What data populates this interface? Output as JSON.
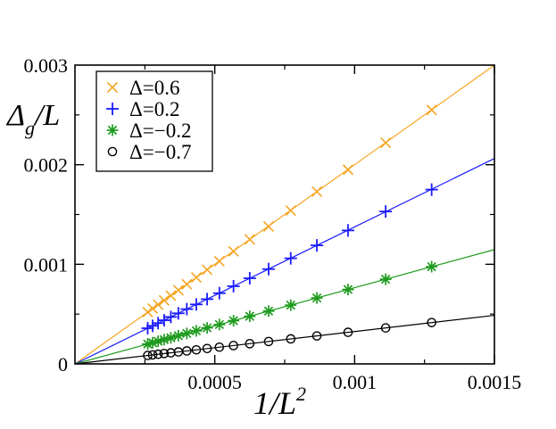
{
  "chart_data": {
    "type": "scatter",
    "title": "",
    "xlabel": "1/L",
    "xlabel_superscript": "2",
    "ylabel": "Δ",
    "ylabel_subscript": "g",
    "ylabel_suffix": "/L",
    "xlim": [
      0,
      0.0015
    ],
    "ylim": [
      0,
      0.003
    ],
    "x_ticks": [
      {
        "value": 0.0005,
        "label": "0.0005"
      },
      {
        "value": 0.001,
        "label": "0.001"
      },
      {
        "value": 0.0015,
        "label": "0.0015"
      }
    ],
    "y_ticks": [
      {
        "value": 0,
        "label": "0"
      },
      {
        "value": 0.001,
        "label": "0.001"
      },
      {
        "value": 0.002,
        "label": "0.002"
      },
      {
        "value": 0.003,
        "label": "0.003"
      }
    ],
    "grid": false,
    "legend_position": "top-left",
    "x": [
      0.0012755,
      0.0011111,
      0.0009766,
      0.0008651,
      0.0007716,
      0.0006925,
      0.000625,
      0.0005669,
      0.0005165,
      0.0004726,
      0.000434,
      0.0004,
      0.0003698,
      0.0003429,
      0.0003189,
      0.0002973,
      0.0002778,
      0.0002601
    ],
    "series": [
      {
        "name": "Δ=0.6",
        "marker": "x",
        "color": "#f5a623",
        "slope": 2.0,
        "y": [
          0.00255,
          0.00222,
          0.00195,
          0.00173,
          0.00154,
          0.00138,
          0.00125,
          0.00113,
          0.00103,
          0.000945,
          0.000868,
          0.0008,
          0.00074,
          0.000686,
          0.000638,
          0.000595,
          0.000556,
          0.00052
        ]
      },
      {
        "name": "Δ=0.2",
        "marker": "plus",
        "color": "#1a1aff",
        "slope": 1.375,
        "y": [
          0.00175,
          0.00153,
          0.00134,
          0.00119,
          0.00106,
          0.000952,
          0.00086,
          0.00078,
          0.00071,
          0.00065,
          0.000597,
          0.00055,
          0.000508,
          0.000471,
          0.000438,
          0.000409,
          0.000382,
          0.000358
        ]
      },
      {
        "name": "Δ=−0.2",
        "marker": "asterisk",
        "color": "#1e9b1e",
        "slope": 0.765,
        "y": [
          0.000976,
          0.00085,
          0.000747,
          0.000662,
          0.00059,
          0.00053,
          0.000478,
          0.000434,
          0.000395,
          0.000362,
          0.000332,
          0.000306,
          0.000283,
          0.000262,
          0.000244,
          0.000227,
          0.000212,
          0.000199
        ]
      },
      {
        "name": "Δ=−0.7",
        "marker": "circle",
        "color": "#000000",
        "slope": 0.325,
        "y": [
          0.000415,
          0.000361,
          0.000317,
          0.000281,
          0.000251,
          0.000225,
          0.000203,
          0.000184,
          0.000168,
          0.000154,
          0.000141,
          0.00013,
          0.00012,
          0.000111,
          0.000104,
          9.66e-05,
          9.03e-05,
          8.45e-05
        ]
      }
    ]
  }
}
